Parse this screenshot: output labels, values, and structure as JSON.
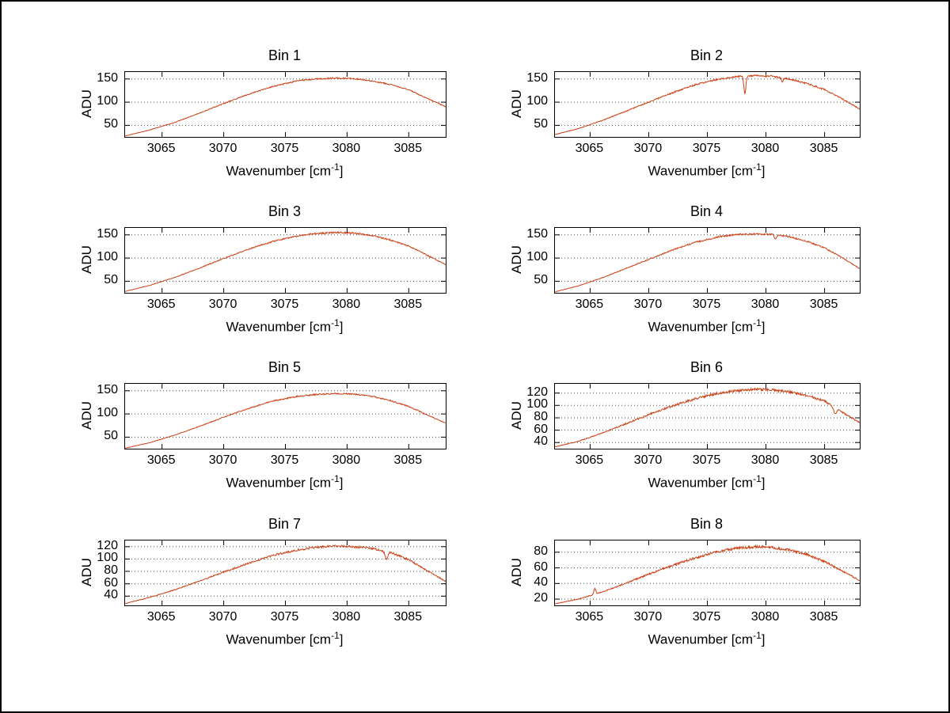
{
  "figure": {
    "background": "#ffffff",
    "border_color": "#000000",
    "xlabel_base": "Wavenumber [cm",
    "xlabel_sup": "-1",
    "xlabel_close": "]",
    "grid": "horizontal-dotted"
  },
  "chart_data": [
    {
      "type": "line",
      "title": "Bin 1",
      "xlabel": "Wavenumber [cm^-1]",
      "ylabel": "ADU",
      "xlim": [
        3062,
        3088
      ],
      "ylim": [
        25,
        165
      ],
      "x_ticks": [
        3065,
        3070,
        3075,
        3080,
        3085
      ],
      "y_ticks": [
        50,
        100,
        150
      ],
      "line_color": "#cb4218",
      "noise_amplitude": 1.6,
      "dips": [],
      "points": [
        [
          3062,
          27
        ],
        [
          3064,
          40
        ],
        [
          3066,
          56
        ],
        [
          3068,
          76
        ],
        [
          3070,
          97
        ],
        [
          3072,
          117
        ],
        [
          3074,
          134
        ],
        [
          3076,
          146
        ],
        [
          3077.5,
          150
        ],
        [
          3079,
          152
        ],
        [
          3080.5,
          151
        ],
        [
          3082,
          146
        ],
        [
          3083.5,
          138
        ],
        [
          3085,
          127
        ],
        [
          3086.5,
          108
        ],
        [
          3088,
          90
        ]
      ]
    },
    {
      "type": "line",
      "title": "Bin 2",
      "xlabel": "Wavenumber [cm^-1]",
      "ylabel": "ADU",
      "xlim": [
        3062,
        3088
      ],
      "ylim": [
        25,
        165
      ],
      "x_ticks": [
        3065,
        3070,
        3075,
        3080,
        3085
      ],
      "y_ticks": [
        50,
        100,
        150
      ],
      "line_color": "#cb4218",
      "noise_amplitude": 2.0,
      "dips": [
        {
          "x": 3078.2,
          "depth": 38,
          "width": 0.12
        },
        {
          "x": 3081.4,
          "depth": 9,
          "width": 0.1
        }
      ],
      "points": [
        [
          3062,
          30
        ],
        [
          3064,
          43
        ],
        [
          3066,
          60
        ],
        [
          3068,
          80
        ],
        [
          3070,
          100
        ],
        [
          3072,
          120
        ],
        [
          3074,
          138
        ],
        [
          3076,
          150
        ],
        [
          3077.5,
          155
        ],
        [
          3079,
          157
        ],
        [
          3080.5,
          156
        ],
        [
          3082,
          150
        ],
        [
          3083.5,
          140
        ],
        [
          3085,
          127
        ],
        [
          3086.5,
          107
        ],
        [
          3088,
          85
        ]
      ]
    },
    {
      "type": "line",
      "title": "Bin 3",
      "xlabel": "Wavenumber [cm^-1]",
      "ylabel": "ADU",
      "xlim": [
        3062,
        3088
      ],
      "ylim": [
        25,
        165
      ],
      "x_ticks": [
        3065,
        3070,
        3075,
        3080,
        3085
      ],
      "y_ticks": [
        50,
        100,
        150
      ],
      "line_color": "#cb4218",
      "noise_amplitude": 1.8,
      "dips": [],
      "points": [
        [
          3062,
          28
        ],
        [
          3064,
          41
        ],
        [
          3066,
          58
        ],
        [
          3068,
          78
        ],
        [
          3070,
          99
        ],
        [
          3072,
          119
        ],
        [
          3074,
          136
        ],
        [
          3076,
          148
        ],
        [
          3077.5,
          153
        ],
        [
          3079,
          155
        ],
        [
          3080.5,
          154
        ],
        [
          3082,
          149
        ],
        [
          3083.5,
          139
        ],
        [
          3085,
          126
        ],
        [
          3086.5,
          106
        ],
        [
          3088,
          86
        ]
      ]
    },
    {
      "type": "line",
      "title": "Bin 4",
      "xlabel": "Wavenumber [cm^-1]",
      "ylabel": "ADU",
      "xlim": [
        3062,
        3088
      ],
      "ylim": [
        25,
        165
      ],
      "x_ticks": [
        3065,
        3070,
        3075,
        3080,
        3085
      ],
      "y_ticks": [
        50,
        100,
        150
      ],
      "line_color": "#cb4218",
      "noise_amplitude": 1.8,
      "dips": [
        {
          "x": 3080.8,
          "depth": 8,
          "width": 0.12
        }
      ],
      "points": [
        [
          3062,
          27
        ],
        [
          3064,
          40
        ],
        [
          3066,
          57
        ],
        [
          3068,
          77
        ],
        [
          3070,
          97
        ],
        [
          3072,
          117
        ],
        [
          3074,
          134
        ],
        [
          3076,
          146
        ],
        [
          3077.5,
          151
        ],
        [
          3079,
          152
        ],
        [
          3080.5,
          151
        ],
        [
          3082,
          146
        ],
        [
          3083.5,
          136
        ],
        [
          3085,
          122
        ],
        [
          3086.5,
          101
        ],
        [
          3088,
          77
        ]
      ]
    },
    {
      "type": "line",
      "title": "Bin 5",
      "xlabel": "Wavenumber [cm^-1]",
      "ylabel": "ADU",
      "xlim": [
        3062,
        3088
      ],
      "ylim": [
        25,
        165
      ],
      "x_ticks": [
        3065,
        3070,
        3075,
        3080,
        3085
      ],
      "y_ticks": [
        50,
        100,
        150
      ],
      "line_color": "#cb4218",
      "noise_amplitude": 1.7,
      "dips": [],
      "points": [
        [
          3062,
          26
        ],
        [
          3064,
          38
        ],
        [
          3066,
          54
        ],
        [
          3068,
          73
        ],
        [
          3070,
          93
        ],
        [
          3072,
          112
        ],
        [
          3074,
          128
        ],
        [
          3076,
          138
        ],
        [
          3077.5,
          142
        ],
        [
          3079,
          144
        ],
        [
          3080.5,
          143
        ],
        [
          3082,
          138
        ],
        [
          3083.5,
          129
        ],
        [
          3085,
          116
        ],
        [
          3086.5,
          98
        ],
        [
          3088,
          80
        ]
      ]
    },
    {
      "type": "line",
      "title": "Bin 6",
      "xlabel": "Wavenumber [cm^-1]",
      "ylabel": "ADU",
      "xlim": [
        3062,
        3088
      ],
      "ylim": [
        30,
        135
      ],
      "x_ticks": [
        3065,
        3070,
        3075,
        3080,
        3085
      ],
      "y_ticks": [
        40,
        60,
        80,
        100,
        120
      ],
      "line_color": "#cb4218",
      "noise_amplitude": 2.2,
      "dips": [
        {
          "x": 3085.9,
          "depth": 10,
          "width": 0.18
        }
      ],
      "points": [
        [
          3062,
          33
        ],
        [
          3064,
          42
        ],
        [
          3066,
          55
        ],
        [
          3068,
          70
        ],
        [
          3070,
          85
        ],
        [
          3072,
          99
        ],
        [
          3074,
          111
        ],
        [
          3076,
          120
        ],
        [
          3077.5,
          124
        ],
        [
          3079,
          126
        ],
        [
          3080.5,
          125
        ],
        [
          3082,
          122
        ],
        [
          3083.5,
          116
        ],
        [
          3085,
          107
        ],
        [
          3086.5,
          89
        ],
        [
          3088,
          72
        ]
      ]
    },
    {
      "type": "line",
      "title": "Bin 7",
      "xlabel": "Wavenumber [cm^-1]",
      "ylabel": "ADU",
      "xlim": [
        3062,
        3088
      ],
      "ylim": [
        25,
        130
      ],
      "x_ticks": [
        3065,
        3070,
        3075,
        3080,
        3085
      ],
      "y_ticks": [
        40,
        60,
        80,
        100,
        120
      ],
      "line_color": "#cb4218",
      "noise_amplitude": 2.0,
      "dips": [
        {
          "x": 3083.2,
          "depth": 12,
          "width": 0.16
        }
      ],
      "points": [
        [
          3062,
          28
        ],
        [
          3064,
          38
        ],
        [
          3066,
          50
        ],
        [
          3068,
          64
        ],
        [
          3070,
          79
        ],
        [
          3072,
          93
        ],
        [
          3074,
          106
        ],
        [
          3076,
          115
        ],
        [
          3077.5,
          119
        ],
        [
          3079,
          121
        ],
        [
          3080.5,
          120
        ],
        [
          3082,
          117
        ],
        [
          3083.5,
          111
        ],
        [
          3085,
          99
        ],
        [
          3086.5,
          81
        ],
        [
          3088,
          64
        ]
      ]
    },
    {
      "type": "line",
      "title": "Bin 8",
      "xlabel": "Wavenumber [cm^-1]",
      "ylabel": "ADU",
      "xlim": [
        3062,
        3088
      ],
      "ylim": [
        12,
        95
      ],
      "x_ticks": [
        3065,
        3070,
        3075,
        3080,
        3085
      ],
      "y_ticks": [
        20,
        40,
        60,
        80
      ],
      "line_color": "#cb4218",
      "noise_amplitude": 1.8,
      "dips": [
        {
          "x": 3065.4,
          "depth": -7,
          "width": 0.12
        }
      ],
      "points": [
        [
          3062,
          14
        ],
        [
          3064,
          20
        ],
        [
          3066,
          29
        ],
        [
          3068,
          40
        ],
        [
          3070,
          52
        ],
        [
          3072,
          63
        ],
        [
          3074,
          73
        ],
        [
          3076,
          81
        ],
        [
          3077.5,
          85
        ],
        [
          3079,
          87
        ],
        [
          3080.5,
          86
        ],
        [
          3082,
          83
        ],
        [
          3083.5,
          77
        ],
        [
          3085,
          68
        ],
        [
          3086.5,
          56
        ],
        [
          3088,
          44
        ]
      ]
    }
  ]
}
